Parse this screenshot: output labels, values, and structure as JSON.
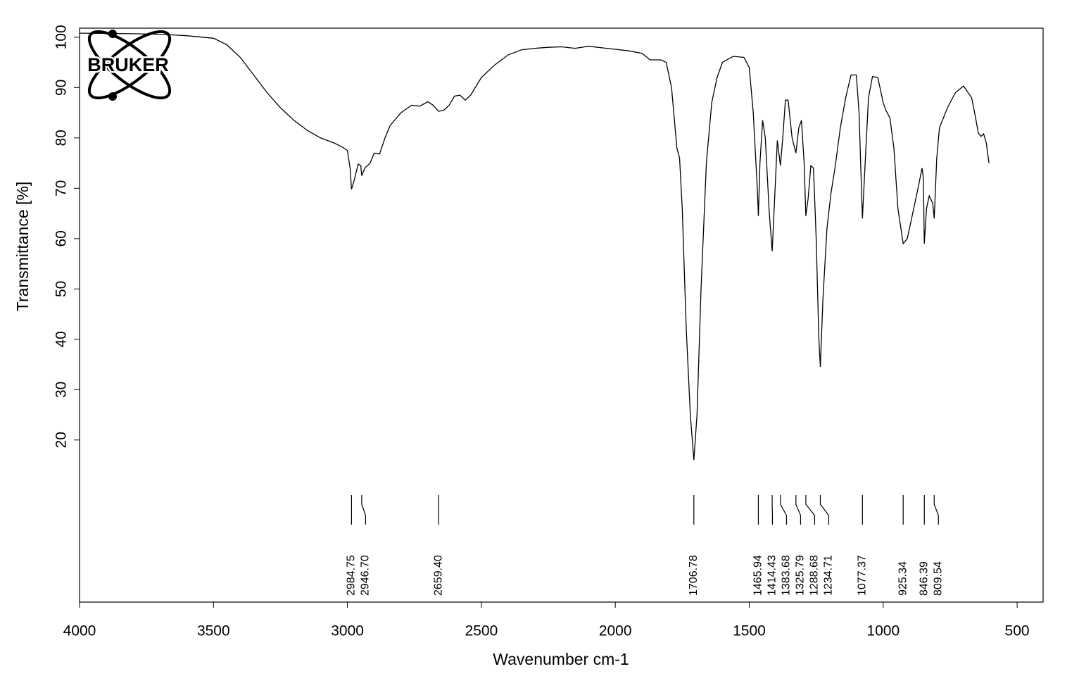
{
  "chart_data": {
    "type": "line",
    "logo": "BRUKER",
    "xlabel": "Wavenumber cm-1",
    "ylabel": "Transmittance [%]",
    "xlim": [
      4000,
      403
    ],
    "ylim": [
      -12.2,
      101.8
    ],
    "xticks": [
      4000,
      3500,
      3000,
      2500,
      2000,
      1500,
      1000,
      500
    ],
    "yticks": [
      20,
      30,
      40,
      50,
      60,
      70,
      80,
      90,
      100
    ],
    "color": "#000000",
    "x": [
      4000,
      3800,
      3700,
      3600,
      3500,
      3450,
      3400,
      3350,
      3300,
      3250,
      3200,
      3150,
      3100,
      3050,
      3020,
      3000,
      2990,
      2984.75,
      2975,
      2960,
      2950,
      2946.7,
      2935,
      2915,
      2900,
      2880,
      2860,
      2840,
      2800,
      2760,
      2730,
      2700,
      2680,
      2659.4,
      2640,
      2620,
      2600,
      2580,
      2560,
      2540,
      2500,
      2450,
      2400,
      2350,
      2300,
      2250,
      2200,
      2150,
      2100,
      2050,
      2000,
      1950,
      1900,
      1870,
      1830,
      1810,
      1790,
      1770,
      1760,
      1750,
      1735,
      1720,
      1706.78,
      1695,
      1680,
      1660,
      1640,
      1620,
      1600,
      1560,
      1520,
      1500,
      1485,
      1470,
      1465.94,
      1460,
      1450,
      1440,
      1425,
      1414.43,
      1405,
      1395,
      1383.68,
      1375,
      1365,
      1355,
      1340,
      1325.79,
      1315,
      1305,
      1295,
      1288.68,
      1280,
      1270,
      1260,
      1250,
      1240,
      1234.71,
      1225,
      1210,
      1195,
      1180,
      1160,
      1140,
      1120,
      1100,
      1090,
      1077.37,
      1070,
      1055,
      1040,
      1020,
      1000,
      990,
      975,
      960,
      945,
      925.34,
      910,
      890,
      870,
      855,
      850,
      846.39,
      838,
      828,
      815,
      809.54,
      800,
      790,
      760,
      730,
      700,
      670,
      655,
      645,
      635,
      625,
      615,
      605
    ],
    "values": [
      100.8,
      100.7,
      100.6,
      100.3,
      99.8,
      98.5,
      96,
      92.5,
      89,
      86,
      83.5,
      81.5,
      80,
      79,
      78.2,
      77.5,
      74,
      69.8,
      71.5,
      74.8,
      74.5,
      72.5,
      74,
      75,
      77,
      76.8,
      80,
      82.5,
      85,
      86.5,
      86.3,
      87.2,
      86.5,
      85.3,
      85.5,
      86.5,
      88.3,
      88.5,
      87.5,
      88.5,
      92,
      94.5,
      96.5,
      97.5,
      97.8,
      98,
      98.1,
      97.8,
      98.2,
      97.9,
      97.6,
      97.3,
      96.8,
      95.5,
      95.5,
      95,
      90,
      78,
      76,
      66,
      42,
      25,
      16,
      25,
      50,
      75,
      87,
      92,
      95,
      96.2,
      96,
      94,
      85,
      70,
      64.5,
      75,
      83.5,
      80,
      65,
      57.5,
      68,
      79.5,
      74.5,
      80,
      87.5,
      87.5,
      80,
      77,
      82,
      83.5,
      75,
      64.5,
      68,
      74.5,
      74,
      60,
      40,
      34.5,
      48,
      62,
      69,
      74,
      82,
      88,
      92.5,
      92.5,
      85,
      64,
      72,
      88,
      92.2,
      92,
      87,
      85.5,
      84,
      78,
      66,
      59,
      60,
      65,
      70,
      74,
      72,
      59,
      66,
      68.5,
      67,
      64,
      76,
      82,
      86,
      89,
      90.3,
      88,
      84,
      81,
      80.3,
      80.8,
      79,
      75
    ],
    "peaks": [
      2984.75,
      {
        "value": 2946.7,
        "label": "2946.70"
      },
      {
        "value": 2659.4,
        "label": "2659.40"
      },
      1706.78,
      1465.94,
      1414.43,
      1383.68,
      1325.79,
      1288.68,
      1234.71,
      1077.37,
      925.34,
      846.39,
      809.54
    ]
  }
}
